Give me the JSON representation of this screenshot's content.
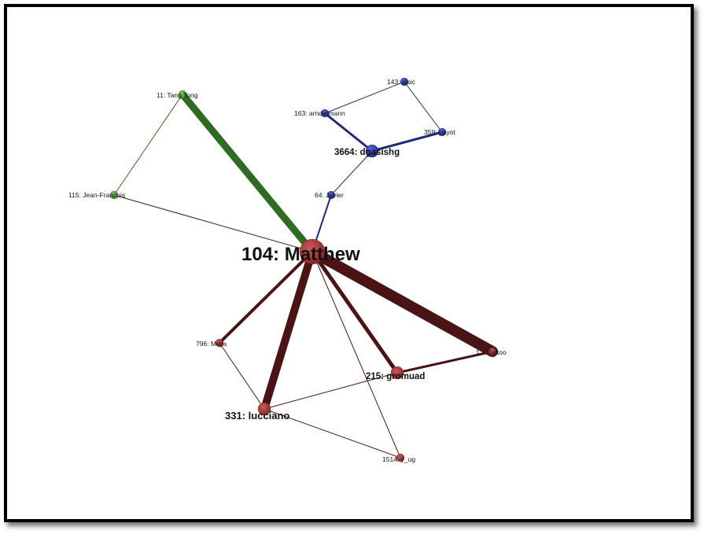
{
  "colors": {
    "green_group": "#3f8f2f",
    "green_edge": "#2f6b22",
    "blue_group": "#2d3aa8",
    "blue_edge": "#1f2a7c",
    "red_group": "#9b2e2e",
    "red_edge": "#4a1414",
    "frame": "#000000"
  },
  "nodes": [
    {
      "id": "n104",
      "label": "104: Matthew",
      "group": "red",
      "rank": 1
    },
    {
      "id": "n11",
      "label": "11: Tang Tong",
      "group": "green",
      "rank": 4
    },
    {
      "id": "n115",
      "label": "115: Jean-Francois",
      "group": "green",
      "rank": 4
    },
    {
      "id": "n143",
      "label": "143: aisic",
      "group": "blue",
      "rank": 4
    },
    {
      "id": "n163",
      "label": "163: arndermann",
      "group": "blue",
      "rank": 4
    },
    {
      "id": "n359",
      "label": "359: payot",
      "group": "blue",
      "rank": 4
    },
    {
      "id": "n3664",
      "label": "3664: dgasishg",
      "group": "blue",
      "rank": 2
    },
    {
      "id": "n64",
      "label": "64: Javier",
      "group": "blue",
      "rank": 4
    },
    {
      "id": "n796",
      "label": "796: Mejia",
      "group": "red",
      "rank": 4
    },
    {
      "id": "n1xx",
      "label": "1… Jaftoo",
      "group": "red",
      "rank": 4
    },
    {
      "id": "n215",
      "label": "215: gromuad",
      "group": "red",
      "rank": 2
    },
    {
      "id": "n331",
      "label": "331: lucciano",
      "group": "red",
      "rank": 2
    },
    {
      "id": "n1514",
      "label": "1514: y_ug",
      "group": "red",
      "rank": 4
    }
  ],
  "edges": [
    {
      "source": "n11",
      "target": "n104",
      "group": "green",
      "weight": 9
    },
    {
      "source": "n11",
      "target": "n115",
      "group": "green",
      "weight": 1
    },
    {
      "source": "n115",
      "target": "n104",
      "group": "red",
      "weight": 1
    },
    {
      "source": "n104",
      "target": "n64",
      "group": "blue",
      "weight": 2
    },
    {
      "source": "n64",
      "target": "n3664",
      "group": "blue",
      "weight": 1
    },
    {
      "source": "n3664",
      "target": "n163",
      "group": "blue",
      "weight": 3
    },
    {
      "source": "n3664",
      "target": "n359",
      "group": "blue",
      "weight": 3
    },
    {
      "source": "n163",
      "target": "n143",
      "group": "blue",
      "weight": 1
    },
    {
      "source": "n143",
      "target": "n359",
      "group": "blue",
      "weight": 1
    },
    {
      "source": "n104",
      "target": "n1xx",
      "group": "red",
      "weight": 14
    },
    {
      "source": "n104",
      "target": "n331",
      "group": "red",
      "weight": 10
    },
    {
      "source": "n104",
      "target": "n215",
      "group": "red",
      "weight": 5
    },
    {
      "source": "n104",
      "target": "n796",
      "group": "red",
      "weight": 4
    },
    {
      "source": "n104",
      "target": "n1514",
      "group": "red",
      "weight": 1
    },
    {
      "source": "n215",
      "target": "n1xx",
      "group": "red",
      "weight": 3
    },
    {
      "source": "n215",
      "target": "n331",
      "group": "red",
      "weight": 1
    },
    {
      "source": "n796",
      "target": "n331",
      "group": "red",
      "weight": 1
    },
    {
      "source": "n331",
      "target": "n1514",
      "group": "red",
      "weight": 1
    }
  ]
}
